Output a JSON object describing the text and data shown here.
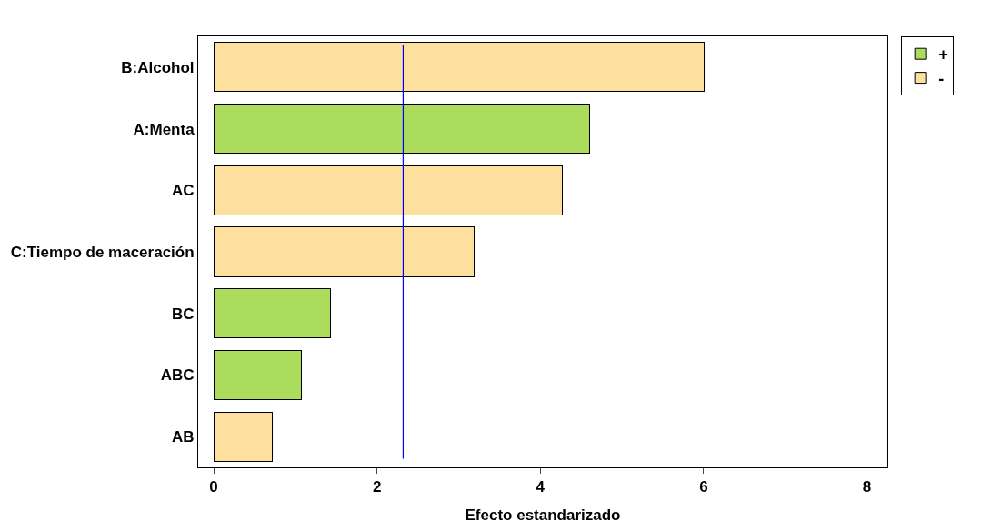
{
  "chart_data": {
    "type": "bar",
    "orientation": "horizontal",
    "stacked": true,
    "xlabel": "Efecto estandarizado",
    "categories": [
      "B:Alcohol",
      "A:Menta",
      "AC",
      "C:Tiempo de maceración",
      "BC",
      "ABC",
      "AB"
    ],
    "series": [
      {
        "name": "+",
        "color": "#acdc5c",
        "values": [
          null,
          4.6,
          null,
          null,
          1.43,
          1.07,
          null
        ]
      },
      {
        "name": "-",
        "color": "#fde09e",
        "values": [
          6.01,
          null,
          4.27,
          3.19,
          null,
          null,
          0.72
        ]
      }
    ],
    "xlim": [
      -0.19,
      8.25
    ],
    "xticks": [
      0,
      2,
      4,
      6,
      8
    ],
    "ref_lines": [
      {
        "axis": "x",
        "value": 2.32,
        "color": "#0000ff"
      }
    ],
    "legend": "top right"
  }
}
